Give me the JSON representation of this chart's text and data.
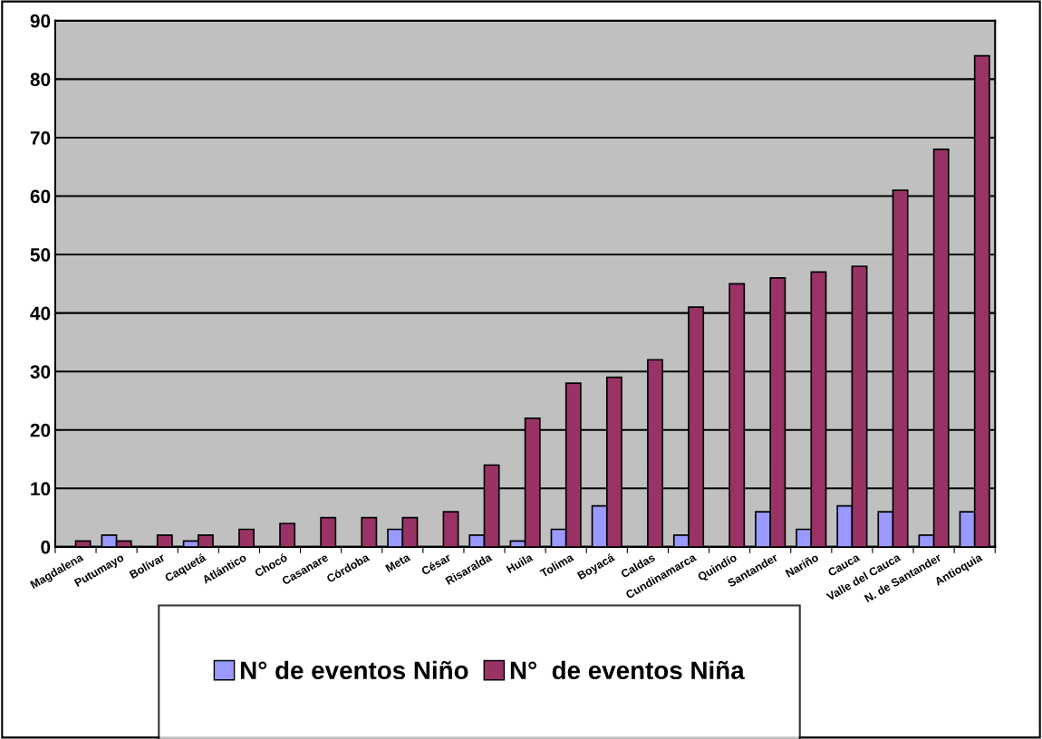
{
  "chart_data": {
    "type": "bar",
    "categories": [
      "Magdalena",
      "Putumayo",
      "Bolívar",
      "Caquetá",
      "Atlántico",
      "Chocó",
      "Casanare",
      "Córdoba",
      "Meta",
      "César",
      "Risaralda",
      "Huila",
      "Tolima",
      "Boyacá",
      "Caldas",
      "Cundinamarca",
      "Quindío",
      "Santander",
      "Nariño",
      "Cauca",
      "Valle del Cauca",
      "N. de Santander",
      "Antioquia"
    ],
    "series": [
      {
        "name": "N° de eventos Niño",
        "color": "#9999ff",
        "values": [
          0,
          2,
          0,
          1,
          0,
          0,
          0,
          0,
          3,
          0,
          2,
          1,
          3,
          7,
          0,
          2,
          0,
          6,
          3,
          7,
          6,
          2,
          6
        ]
      },
      {
        "name": "N°  de eventos Niña",
        "color": "#993366",
        "values": [
          1,
          1,
          2,
          2,
          3,
          4,
          5,
          5,
          5,
          6,
          14,
          22,
          28,
          29,
          32,
          41,
          45,
          46,
          47,
          48,
          61,
          68,
          84
        ]
      }
    ],
    "ylim": [
      0,
      90
    ],
    "yticks": [
      0,
      10,
      20,
      30,
      40,
      50,
      60,
      70,
      80,
      90
    ],
    "grid": "y",
    "legend": "bottom"
  }
}
